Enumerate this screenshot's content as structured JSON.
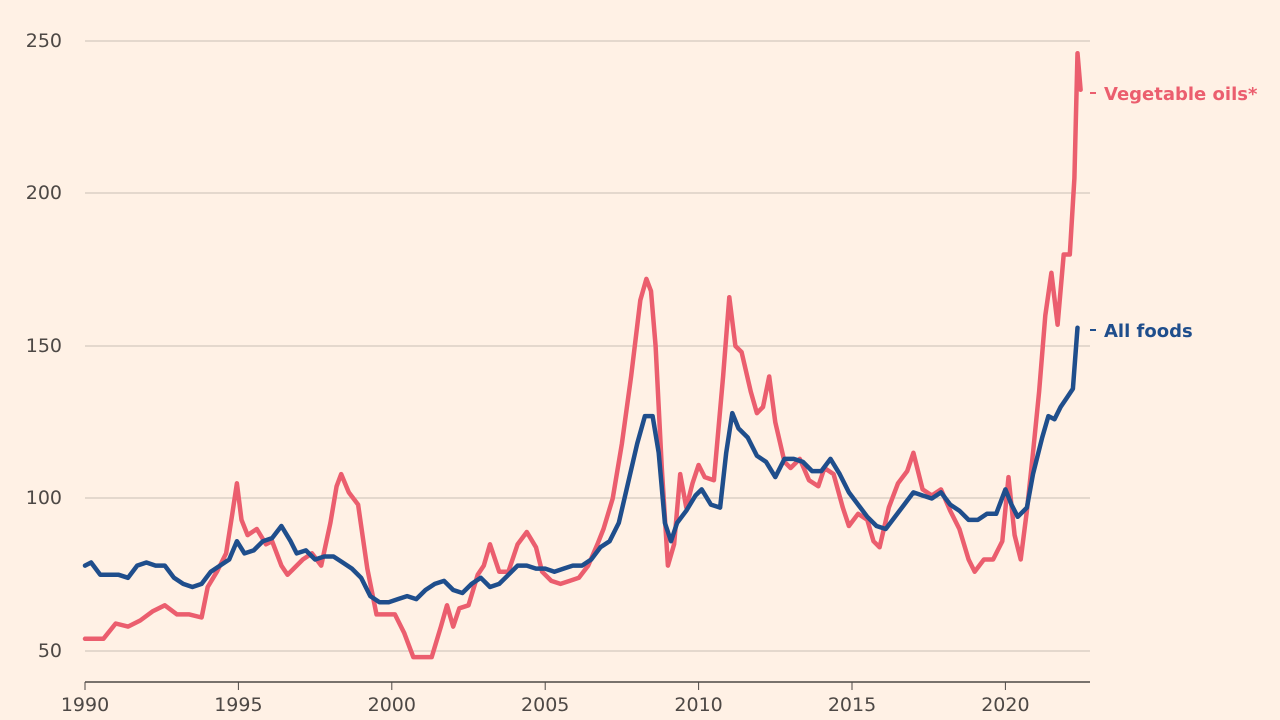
{
  "chart_data": {
    "type": "line",
    "title": "",
    "xlabel": "",
    "ylabel": "",
    "xlim": [
      1990,
      2022.75
    ],
    "ylim": [
      45,
      253
    ],
    "grid": true,
    "y_ticks": [
      50,
      100,
      150,
      200,
      250
    ],
    "x_ticks": [
      1990,
      1995,
      2000,
      2005,
      2010,
      2015,
      2020
    ],
    "y_tick_labels": [
      "50",
      "100",
      "150",
      "200",
      "250"
    ],
    "x_tick_labels": [
      "1990",
      "1995",
      "2000",
      "2005",
      "2010",
      "2015",
      "2020"
    ],
    "legend": "direct labels at line ends, right",
    "series": [
      {
        "name": "Vegetable oils*",
        "color": "#eb5e6e",
        "points": [
          [
            1990.0,
            54
          ],
          [
            1990.3,
            54
          ],
          [
            1990.6,
            54
          ],
          [
            1991.0,
            59
          ],
          [
            1991.4,
            58
          ],
          [
            1991.8,
            60
          ],
          [
            1992.2,
            63
          ],
          [
            1992.6,
            65
          ],
          [
            1993.0,
            62
          ],
          [
            1993.4,
            62
          ],
          [
            1993.8,
            61
          ],
          [
            1994.0,
            71
          ],
          [
            1994.3,
            76
          ],
          [
            1994.6,
            82
          ],
          [
            1994.8,
            95
          ],
          [
            1994.95,
            105
          ],
          [
            1995.1,
            93
          ],
          [
            1995.3,
            88
          ],
          [
            1995.6,
            90
          ],
          [
            1995.9,
            85
          ],
          [
            1996.1,
            86
          ],
          [
            1996.4,
            78
          ],
          [
            1996.6,
            75
          ],
          [
            1996.9,
            78
          ],
          [
            1997.1,
            80
          ],
          [
            1997.4,
            82
          ],
          [
            1997.7,
            78
          ],
          [
            1998.0,
            92
          ],
          [
            1998.2,
            104
          ],
          [
            1998.35,
            108
          ],
          [
            1998.6,
            102
          ],
          [
            1998.9,
            98
          ],
          [
            1999.2,
            77
          ],
          [
            1999.5,
            62
          ],
          [
            1999.8,
            62
          ],
          [
            2000.1,
            62
          ],
          [
            2000.4,
            56
          ],
          [
            2000.7,
            48
          ],
          [
            2001.0,
            48
          ],
          [
            2001.3,
            48
          ],
          [
            2001.6,
            58
          ],
          [
            2001.8,
            65
          ],
          [
            2002.0,
            58
          ],
          [
            2002.2,
            64
          ],
          [
            2002.5,
            65
          ],
          [
            2002.8,
            75
          ],
          [
            2003.0,
            78
          ],
          [
            2003.2,
            85
          ],
          [
            2003.5,
            76
          ],
          [
            2003.8,
            76
          ],
          [
            2004.1,
            85
          ],
          [
            2004.4,
            89
          ],
          [
            2004.7,
            84
          ],
          [
            2004.9,
            76
          ],
          [
            2005.2,
            73
          ],
          [
            2005.5,
            72
          ],
          [
            2005.8,
            73
          ],
          [
            2006.1,
            74
          ],
          [
            2006.4,
            78
          ],
          [
            2006.7,
            85
          ],
          [
            2006.9,
            90
          ],
          [
            2007.2,
            100
          ],
          [
            2007.5,
            118
          ],
          [
            2007.8,
            140
          ],
          [
            2008.1,
            165
          ],
          [
            2008.3,
            172
          ],
          [
            2008.45,
            168
          ],
          [
            2008.6,
            150
          ],
          [
            2008.8,
            110
          ],
          [
            2009.0,
            78
          ],
          [
            2009.2,
            85
          ],
          [
            2009.4,
            108
          ],
          [
            2009.6,
            97
          ],
          [
            2009.8,
            105
          ],
          [
            2010.0,
            111
          ],
          [
            2010.2,
            107
          ],
          [
            2010.5,
            106
          ],
          [
            2010.8,
            140
          ],
          [
            2011.0,
            166
          ],
          [
            2011.2,
            150
          ],
          [
            2011.4,
            148
          ],
          [
            2011.7,
            135
          ],
          [
            2011.9,
            128
          ],
          [
            2012.1,
            130
          ],
          [
            2012.3,
            140
          ],
          [
            2012.5,
            125
          ],
          [
            2012.8,
            112
          ],
          [
            2013.0,
            110
          ],
          [
            2013.3,
            113
          ],
          [
            2013.6,
            106
          ],
          [
            2013.9,
            104
          ],
          [
            2014.1,
            110
          ],
          [
            2014.4,
            108
          ],
          [
            2014.7,
            97
          ],
          [
            2014.9,
            91
          ],
          [
            2015.2,
            95
          ],
          [
            2015.5,
            93
          ],
          [
            2015.7,
            86
          ],
          [
            2015.9,
            84
          ],
          [
            2016.2,
            97
          ],
          [
            2016.5,
            105
          ],
          [
            2016.8,
            109
          ],
          [
            2017.0,
            115
          ],
          [
            2017.3,
            103
          ],
          [
            2017.6,
            101
          ],
          [
            2017.9,
            103
          ],
          [
            2018.2,
            96
          ],
          [
            2018.5,
            90
          ],
          [
            2018.8,
            80
          ],
          [
            2019.0,
            76
          ],
          [
            2019.3,
            80
          ],
          [
            2019.6,
            80
          ],
          [
            2019.9,
            86
          ],
          [
            2020.1,
            107
          ],
          [
            2020.3,
            88
          ],
          [
            2020.5,
            80
          ],
          [
            2020.7,
            96
          ],
          [
            2020.9,
            115
          ],
          [
            2021.1,
            135
          ],
          [
            2021.3,
            160
          ],
          [
            2021.5,
            174
          ],
          [
            2021.7,
            157
          ],
          [
            2021.9,
            180
          ],
          [
            2022.1,
            180
          ],
          [
            2022.25,
            205
          ],
          [
            2022.35,
            246
          ],
          [
            2022.45,
            234
          ]
        ]
      },
      {
        "name": "All foods",
        "color": "#1f4e8c",
        "points": [
          [
            1990.0,
            78
          ],
          [
            1990.2,
            79
          ],
          [
            1990.5,
            75
          ],
          [
            1990.8,
            75
          ],
          [
            1991.1,
            75
          ],
          [
            1991.4,
            74
          ],
          [
            1991.7,
            78
          ],
          [
            1992.0,
            79
          ],
          [
            1992.3,
            78
          ],
          [
            1992.6,
            78
          ],
          [
            1992.9,
            74
          ],
          [
            1993.2,
            72
          ],
          [
            1993.5,
            71
          ],
          [
            1993.8,
            72
          ],
          [
            1994.1,
            76
          ],
          [
            1994.4,
            78
          ],
          [
            1994.7,
            80
          ],
          [
            1994.95,
            86
          ],
          [
            1995.2,
            82
          ],
          [
            1995.5,
            83
          ],
          [
            1995.8,
            86
          ],
          [
            1996.1,
            87
          ],
          [
            1996.4,
            91
          ],
          [
            1996.7,
            86
          ],
          [
            1996.9,
            82
          ],
          [
            1997.2,
            83
          ],
          [
            1997.5,
            80
          ],
          [
            1997.8,
            81
          ],
          [
            1998.1,
            81
          ],
          [
            1998.4,
            79
          ],
          [
            1998.7,
            77
          ],
          [
            1999.0,
            74
          ],
          [
            1999.3,
            68
          ],
          [
            1999.6,
            66
          ],
          [
            1999.9,
            66
          ],
          [
            2000.2,
            67
          ],
          [
            2000.5,
            68
          ],
          [
            2000.8,
            67
          ],
          [
            2001.1,
            70
          ],
          [
            2001.4,
            72
          ],
          [
            2001.7,
            73
          ],
          [
            2002.0,
            70
          ],
          [
            2002.3,
            69
          ],
          [
            2002.6,
            72
          ],
          [
            2002.9,
            74
          ],
          [
            2003.2,
            71
          ],
          [
            2003.5,
            72
          ],
          [
            2003.8,
            75
          ],
          [
            2004.1,
            78
          ],
          [
            2004.4,
            78
          ],
          [
            2004.7,
            77
          ],
          [
            2005.0,
            77
          ],
          [
            2005.3,
            76
          ],
          [
            2005.6,
            77
          ],
          [
            2005.9,
            78
          ],
          [
            2006.2,
            78
          ],
          [
            2006.5,
            80
          ],
          [
            2006.8,
            84
          ],
          [
            2007.1,
            86
          ],
          [
            2007.4,
            92
          ],
          [
            2007.7,
            105
          ],
          [
            2008.0,
            118
          ],
          [
            2008.25,
            127
          ],
          [
            2008.5,
            127
          ],
          [
            2008.7,
            115
          ],
          [
            2008.9,
            92
          ],
          [
            2009.1,
            86
          ],
          [
            2009.3,
            92
          ],
          [
            2009.6,
            96
          ],
          [
            2009.9,
            101
          ],
          [
            2010.1,
            103
          ],
          [
            2010.4,
            98
          ],
          [
            2010.7,
            97
          ],
          [
            2010.9,
            115
          ],
          [
            2011.1,
            128
          ],
          [
            2011.3,
            123
          ],
          [
            2011.6,
            120
          ],
          [
            2011.9,
            114
          ],
          [
            2012.2,
            112
          ],
          [
            2012.5,
            107
          ],
          [
            2012.8,
            113
          ],
          [
            2013.1,
            113
          ],
          [
            2013.4,
            112
          ],
          [
            2013.7,
            109
          ],
          [
            2014.0,
            109
          ],
          [
            2014.3,
            113
          ],
          [
            2014.6,
            108
          ],
          [
            2014.9,
            102
          ],
          [
            2015.2,
            98
          ],
          [
            2015.5,
            94
          ],
          [
            2015.8,
            91
          ],
          [
            2016.1,
            90
          ],
          [
            2016.4,
            94
          ],
          [
            2016.7,
            98
          ],
          [
            2017.0,
            102
          ],
          [
            2017.3,
            101
          ],
          [
            2017.6,
            100
          ],
          [
            2017.9,
            102
          ],
          [
            2018.2,
            98
          ],
          [
            2018.5,
            96
          ],
          [
            2018.8,
            93
          ],
          [
            2019.1,
            93
          ],
          [
            2019.4,
            95
          ],
          [
            2019.7,
            95
          ],
          [
            2020.0,
            103
          ],
          [
            2020.2,
            98
          ],
          [
            2020.4,
            94
          ],
          [
            2020.7,
            97
          ],
          [
            2020.9,
            108
          ],
          [
            2021.2,
            120
          ],
          [
            2021.4,
            127
          ],
          [
            2021.6,
            126
          ],
          [
            2021.8,
            130
          ],
          [
            2022.0,
            133
          ],
          [
            2022.2,
            136
          ],
          [
            2022.35,
            156
          ]
        ]
      }
    ]
  }
}
